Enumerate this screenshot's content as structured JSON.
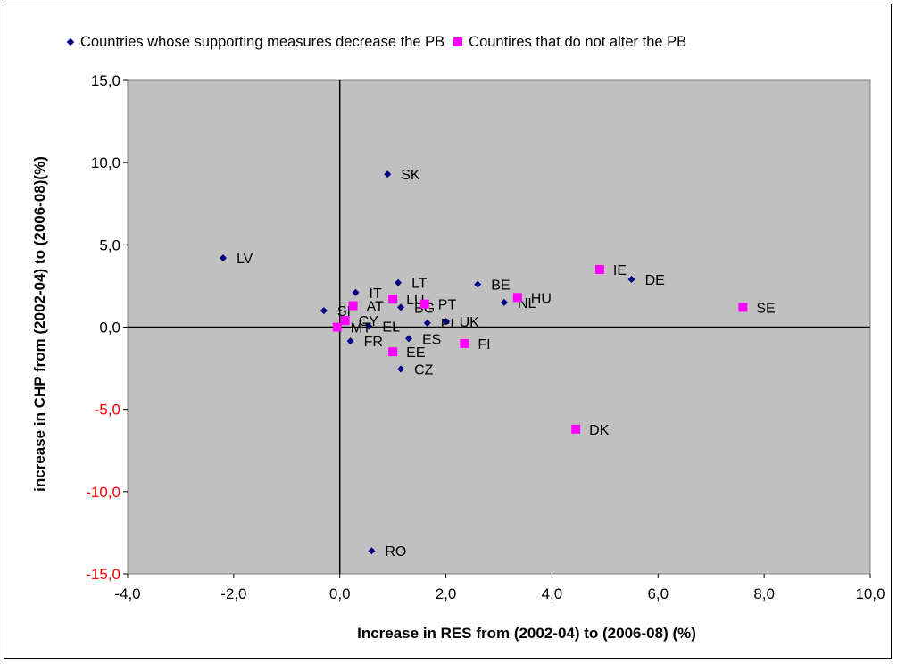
{
  "legend": {
    "series1_label": "Countries whose supporting measures decrease the PB",
    "series2_label": "Countires that do not alter the PB"
  },
  "colors": {
    "plot_background": "#c0c0c0",
    "series1": "#000080",
    "series2": "#ff00ff",
    "negative_tick": "#ff0000",
    "axis": "#000000"
  },
  "chart_data": {
    "type": "scatter",
    "title": "",
    "xlabel": "Increase in RES from (2002-04) to (2006-08) (%)",
    "ylabel": "increase in CHP from (2002-04) to (2006-08)(%)",
    "xlim": [
      -4,
      10
    ],
    "ylim": [
      -15,
      15
    ],
    "x_ticks": [
      "-4,0",
      "-2,0",
      "0,0",
      "2,0",
      "4,0",
      "6,0",
      "8,0",
      "10,0"
    ],
    "y_ticks": [
      "15,0",
      "10,0",
      "5,0",
      "0,0",
      "-5,0",
      "-10,0",
      "-15,0"
    ],
    "legend_position": "top",
    "grid": false,
    "series": [
      {
        "name": "Countries whose supporting measures decrease the PB",
        "marker": "diamond",
        "points": [
          {
            "label": "SK",
            "x": 0.9,
            "y": 9.3
          },
          {
            "label": "LV",
            "x": -2.2,
            "y": 4.2
          },
          {
            "label": "LT",
            "x": 1.1,
            "y": 2.7
          },
          {
            "label": "BE",
            "x": 2.6,
            "y": 2.6
          },
          {
            "label": "DE",
            "x": 5.5,
            "y": 2.9
          },
          {
            "label": "IT",
            "x": 0.3,
            "y": 2.1
          },
          {
            "label": "NL",
            "x": 3.1,
            "y": 1.5
          },
          {
            "label": "BG",
            "x": 1.15,
            "y": 1.2
          },
          {
            "label": "SI",
            "x": -0.3,
            "y": 1.0
          },
          {
            "label": "PL",
            "x": 1.65,
            "y": 0.25
          },
          {
            "label": "UK",
            "x": 2.0,
            "y": 0.35
          },
          {
            "label": "EL",
            "x": 0.55,
            "y": 0.05
          },
          {
            "label": "FR",
            "x": 0.2,
            "y": -0.85
          },
          {
            "label": "ES",
            "x": 1.3,
            "y": -0.7
          },
          {
            "label": "CZ",
            "x": 1.15,
            "y": -2.55
          },
          {
            "label": "RO",
            "x": 0.6,
            "y": -13.6
          }
        ]
      },
      {
        "name": "Countires that do not alter the PB",
        "marker": "square",
        "points": [
          {
            "label": "IE",
            "x": 4.9,
            "y": 3.5
          },
          {
            "label": "SE",
            "x": 7.6,
            "y": 1.2
          },
          {
            "label": "HU",
            "x": 3.35,
            "y": 1.8
          },
          {
            "label": "LU",
            "x": 1.0,
            "y": 1.7
          },
          {
            "label": "PT",
            "x": 1.6,
            "y": 1.4
          },
          {
            "label": "AT",
            "x": 0.25,
            "y": 1.3
          },
          {
            "label": "CY",
            "x": 0.1,
            "y": 0.4
          },
          {
            "label": "MT",
            "x": -0.05,
            "y": 0.0
          },
          {
            "label": "FI",
            "x": 2.35,
            "y": -1.0
          },
          {
            "label": "EE",
            "x": 1.0,
            "y": -1.5
          },
          {
            "label": "DK",
            "x": 4.45,
            "y": -6.2
          }
        ]
      }
    ]
  }
}
